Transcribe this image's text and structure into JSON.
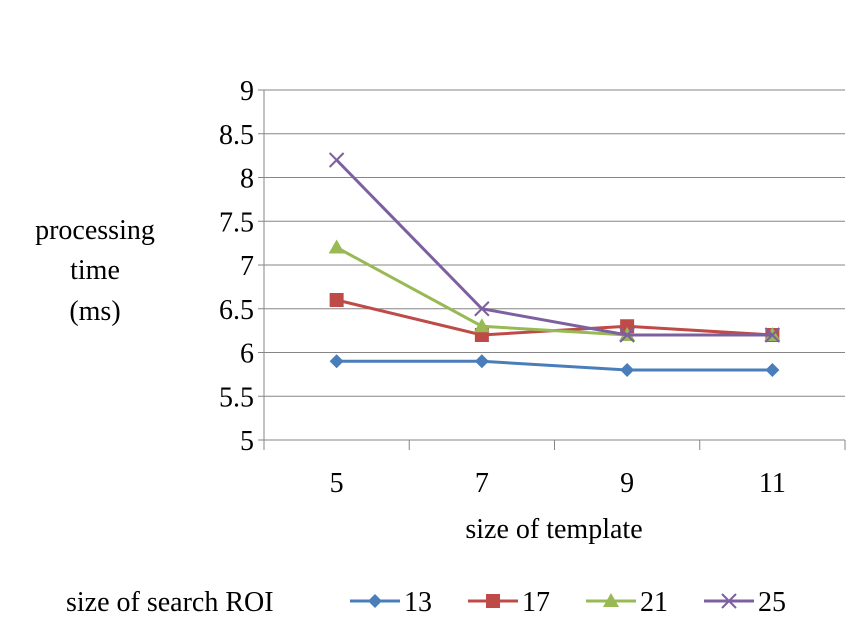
{
  "chart_data": {
    "type": "line",
    "title": "",
    "xlabel": "size of template",
    "ylabel_lines": [
      "processing",
      "time",
      "(ms)"
    ],
    "categories": [
      "5",
      "7",
      "9",
      "11"
    ],
    "ylim": [
      5,
      9
    ],
    "yticks": [
      "5",
      "5.5",
      "6",
      "6.5",
      "7",
      "7.5",
      "8",
      "8.5",
      "9"
    ],
    "grid": "horizontal",
    "legend": {
      "title": "size of search ROI",
      "position": "bottom"
    },
    "series": [
      {
        "name": "13",
        "values": [
          5.9,
          5.9,
          5.8,
          5.8
        ],
        "color": "#4a7ebb",
        "marker": "diamond"
      },
      {
        "name": "17",
        "values": [
          6.6,
          6.2,
          6.3,
          6.2
        ],
        "color": "#be4b48",
        "marker": "square"
      },
      {
        "name": "21",
        "values": [
          7.2,
          6.3,
          6.2,
          6.2
        ],
        "color": "#98b954",
        "marker": "triangle"
      },
      {
        "name": "25",
        "values": [
          8.2,
          6.5,
          6.2,
          6.2
        ],
        "color": "#7d60a0",
        "marker": "x"
      }
    ]
  }
}
